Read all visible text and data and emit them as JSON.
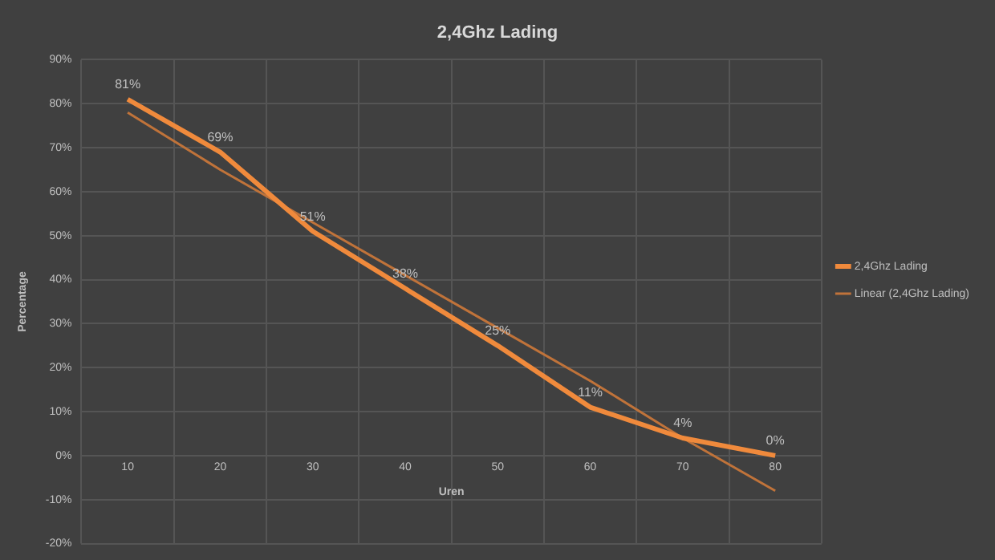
{
  "chart_data": {
    "type": "line",
    "title": "2,4Ghz Lading",
    "xlabel": "Uren",
    "ylabel": "Percentage",
    "categories": [
      "10",
      "20",
      "30",
      "40",
      "50",
      "60",
      "70",
      "80"
    ],
    "series": [
      {
        "name": "2,4Ghz Lading",
        "color": "#f08a3c",
        "values": [
          81,
          69,
          51,
          38,
          25,
          11,
          4,
          0
        ],
        "value_labels": [
          "81%",
          "69%",
          "51%",
          "38%",
          "25%",
          "11%",
          "4%",
          "0%"
        ]
      },
      {
        "name": "Linear (2,4Ghz Lading)",
        "color": "#c0733a",
        "values": [
          78,
          65,
          53,
          41,
          29,
          17,
          4,
          -8
        ]
      }
    ],
    "ylim": [
      -20,
      90
    ],
    "yticks": [
      {
        "value": -20,
        "label": "-20%"
      },
      {
        "value": -10,
        "label": "-10%"
      },
      {
        "value": 0,
        "label": "0%"
      },
      {
        "value": 10,
        "label": "10%"
      },
      {
        "value": 20,
        "label": "20%"
      },
      {
        "value": 30,
        "label": "30%"
      },
      {
        "value": 40,
        "label": "40%"
      },
      {
        "value": 50,
        "label": "50%"
      },
      {
        "value": 60,
        "label": "60%"
      },
      {
        "value": 70,
        "label": "70%"
      },
      {
        "value": 80,
        "label": "80%"
      },
      {
        "value": 90,
        "label": "90%"
      }
    ],
    "grid": true,
    "legend": "right",
    "marker": "none",
    "line_style": "solid"
  }
}
